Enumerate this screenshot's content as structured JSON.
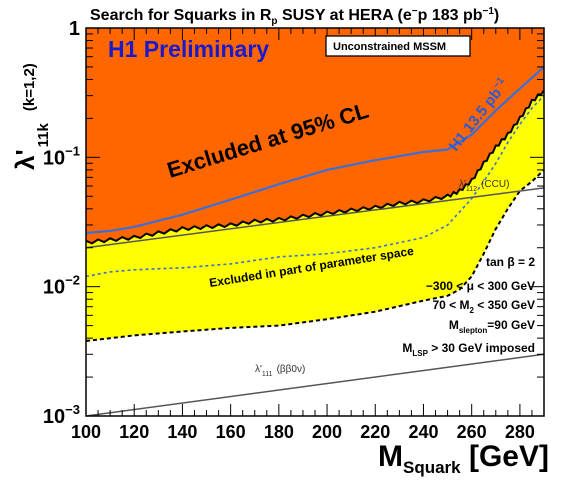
{
  "chart_data": {
    "type": "area",
    "title_prefix": "Search for Squarks in R",
    "title_sub": "p",
    "title_suffix": " SUSY at HERA (e",
    "title_sup": "−",
    "title_tail": "p 183 pb",
    "title_tail_sup": "−1",
    "title_close": ")",
    "experiment_label": "H1 Preliminary",
    "model_box": "Unconstrained MSSM",
    "excluded_label": "Excluded at 95% CL",
    "partial_label": "Excluded in part of parameter space",
    "lumi_label": "H1 13.5 pb",
    "lumi_sup": "−1",
    "ccu_label": "λ'",
    "ccu_sub": "112",
    "ccu_tag": "(CCU)",
    "bb_label": "λ'",
    "bb_sub": "111",
    "bb_tag": "(ββ0ν)",
    "xlabel_main": "M",
    "xlabel_sub": "Squark",
    "xlabel_unit": " [GeV]",
    "ylabel_main": "λ'",
    "ylabel_sub": "11k",
    "ylabel_tag": "(k=1,2)",
    "parameters": [
      {
        "main": "tan β = 2",
        "sub": "",
        "tail": ""
      },
      {
        "main": "−300 < μ  < 300 GeV",
        "sub": "",
        "tail": ""
      },
      {
        "main": "70 < M",
        "sub": "2",
        "tail": " < 350 GeV"
      },
      {
        "main": "M",
        "sub": "slepton",
        "tail": "=90 GeV"
      },
      {
        "main": "M",
        "sub": "LSP",
        "tail": " > 30 GeV imposed"
      }
    ],
    "xlim": [
      100,
      290
    ],
    "ylim": [
      0.001,
      1
    ],
    "yscale": "log",
    "x_ticks": [
      100,
      120,
      140,
      160,
      180,
      200,
      220,
      240,
      260,
      280
    ],
    "y_ticks": [
      {
        "value": 0.001,
        "base": "10",
        "exp": "−3"
      },
      {
        "value": 0.01,
        "base": "10",
        "exp": "−2"
      },
      {
        "value": 0.1,
        "base": "10",
        "exp": "−1"
      },
      {
        "value": 1,
        "base": "1",
        "exp": ""
      }
    ],
    "colors": {
      "excluded": "#ff6600",
      "partial": "#ffff00",
      "h1_935": "#3a6fd8",
      "constraint": "#555555"
    },
    "series": [
      {
        "role": "limit-solid",
        "x": [
          100,
          110,
          120,
          130,
          140,
          150,
          160,
          170,
          180,
          190,
          200,
          210,
          220,
          230,
          240,
          250,
          255,
          260,
          265,
          270,
          275,
          280,
          285,
          290
        ],
        "y": [
          0.022,
          0.023,
          0.024,
          0.026,
          0.028,
          0.029,
          0.03,
          0.032,
          0.033,
          0.035,
          0.037,
          0.039,
          0.041,
          0.044,
          0.046,
          0.05,
          0.055,
          0.066,
          0.09,
          0.12,
          0.15,
          0.2,
          0.27,
          0.33
        ]
      },
      {
        "role": "limit-dashed",
        "x": [
          100,
          120,
          140,
          160,
          180,
          200,
          220,
          240,
          250,
          255,
          260,
          265,
          270,
          275,
          280,
          285,
          290
        ],
        "y": [
          0.0038,
          0.0042,
          0.0045,
          0.0048,
          0.005,
          0.0056,
          0.0064,
          0.0078,
          0.0085,
          0.0095,
          0.012,
          0.018,
          0.028,
          0.04,
          0.055,
          0.065,
          0.08
        ]
      },
      {
        "role": "dotted-blue",
        "x": [
          100,
          110,
          120,
          140,
          160,
          180,
          200,
          220,
          240,
          250,
          260,
          265,
          270,
          275,
          280,
          285,
          290
        ],
        "y": [
          0.012,
          0.013,
          0.0135,
          0.014,
          0.015,
          0.017,
          0.018,
          0.02,
          0.024,
          0.03,
          0.048,
          0.065,
          0.09,
          0.13,
          0.18,
          0.24,
          0.3
        ]
      },
      {
        "role": "h1-13.5",
        "x": [
          100,
          110,
          120,
          140,
          160,
          180,
          200,
          220,
          240,
          250,
          260,
          270,
          280,
          290
        ],
        "y": [
          0.026,
          0.027,
          0.029,
          0.036,
          0.047,
          0.062,
          0.08,
          0.095,
          0.11,
          0.115,
          0.15,
          0.23,
          0.34,
          0.5
        ]
      },
      {
        "role": "ccu-line",
        "x": [
          100,
          290
        ],
        "y": [
          0.02,
          0.058
        ]
      },
      {
        "role": "bb-line",
        "x": [
          100,
          290
        ],
        "y": [
          0.001,
          0.003
        ]
      }
    ]
  }
}
